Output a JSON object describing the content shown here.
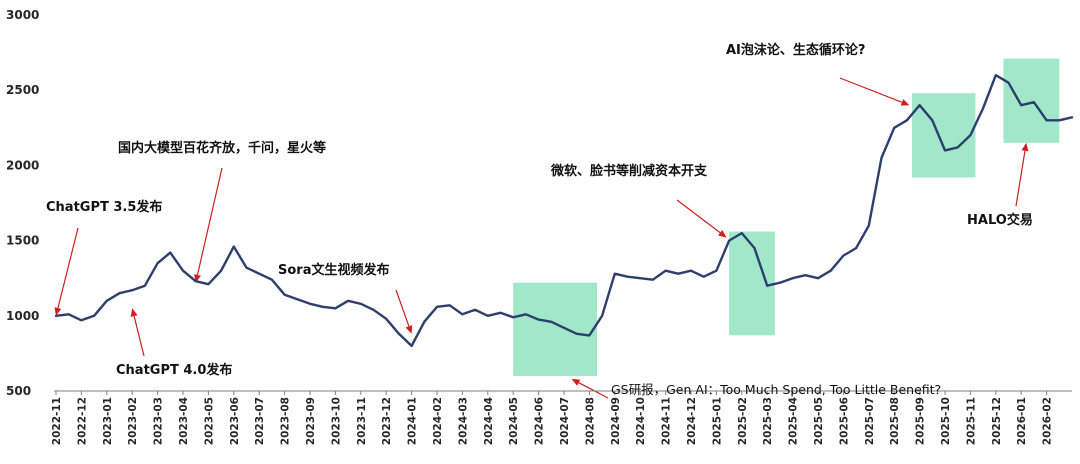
{
  "chart_data": {
    "type": "line",
    "title": "",
    "xlabel": "",
    "ylabel": "",
    "ylim": [
      500,
      3000
    ],
    "yticks": [
      500,
      1000,
      1500,
      2000,
      2500,
      3000
    ],
    "grid": false,
    "legend": "none",
    "x_start": "2022-11",
    "x_end": "2026-03",
    "xticks": [
      "2022-11",
      "2022-12",
      "2023-01",
      "2023-02",
      "2023-03",
      "2023-04",
      "2023-05",
      "2023-06",
      "2023-07",
      "2023-08",
      "2023-09",
      "2023-10",
      "2023-11",
      "2023-12",
      "2024-01",
      "2024-02",
      "2024-03",
      "2024-04",
      "2024-05",
      "2024-06",
      "2024-07",
      "2024-08",
      "2024-09",
      "2024-10",
      "2024-11",
      "2024-12",
      "2025-01",
      "2025-02",
      "2025-03",
      "2025-04",
      "2025-05",
      "2025-06",
      "2025-07",
      "2025-08",
      "2025-09",
      "2025-10",
      "2025-11",
      "2025-12",
      "2026-01",
      "2026-02"
    ],
    "series": [
      {
        "color": "#2e3f6e",
        "x": [
          "2022-11",
          "2022-11.5",
          "2022-12",
          "2022-12.5",
          "2023-01",
          "2023-01.5",
          "2023-02",
          "2023-02.5",
          "2023-03",
          "2023-03.5",
          "2023-04",
          "2023-04.5",
          "2023-05",
          "2023-05.5",
          "2023-06",
          "2023-06.5",
          "2023-07",
          "2023-07.5",
          "2023-08",
          "2023-08.5",
          "2023-09",
          "2023-09.5",
          "2023-10",
          "2023-10.5",
          "2023-11",
          "2023-11.5",
          "2023-12",
          "2023-12.5",
          "2024-01",
          "2024-01.5",
          "2024-02",
          "2024-02.5",
          "2024-03",
          "2024-03.5",
          "2024-04",
          "2024-04.5",
          "2024-05",
          "2024-05.5",
          "2024-06",
          "2024-06.5",
          "2024-07",
          "2024-07.5",
          "2024-08",
          "2024-08.5",
          "2024-09",
          "2024-09.5",
          "2024-10",
          "2024-10.5",
          "2024-11",
          "2024-11.5",
          "2024-12",
          "2024-12.5",
          "2025-01",
          "2025-01.5",
          "2025-02",
          "2025-02.5",
          "2025-03",
          "2025-03.5",
          "2025-04",
          "2025-04.5",
          "2025-05",
          "2025-05.5",
          "2025-06",
          "2025-06.5",
          "2025-07",
          "2025-07.5",
          "2025-08",
          "2025-08.5",
          "2025-09",
          "2025-09.5",
          "2025-10",
          "2025-10.5",
          "2025-11",
          "2025-11.5",
          "2025-12",
          "2025-12.5",
          "2026-01",
          "2026-01.5",
          "2026-02",
          "2026-02.5",
          "2026-03"
        ],
        "values": [
          1000,
          1010,
          970,
          1000,
          1100,
          1150,
          1170,
          1200,
          1350,
          1420,
          1300,
          1230,
          1210,
          1300,
          1460,
          1320,
          1280,
          1240,
          1140,
          1110,
          1080,
          1060,
          1050,
          1100,
          1080,
          1040,
          980,
          880,
          800,
          960,
          1060,
          1070,
          1010,
          1040,
          1000,
          1020,
          990,
          1010,
          975,
          960,
          920,
          880,
          870,
          1000,
          1280,
          1260,
          1250,
          1240,
          1300,
          1280,
          1300,
          1260,
          1300,
          1500,
          1550,
          1450,
          1200,
          1220,
          1250,
          1270,
          1250,
          1300,
          1400,
          1450,
          1600,
          2050,
          2250,
          2300,
          2400,
          2300,
          2100,
          2120,
          2200,
          2380,
          2600,
          2550,
          2400,
          2420,
          2300,
          2300,
          2320
        ]
      }
    ],
    "highlight_periods": [
      {
        "from": "2024-05",
        "to": "2024-08.3",
        "low": 600,
        "high": 1220
      },
      {
        "from": "2025-01.5",
        "to": "2025-03.3",
        "low": 870,
        "high": 1560
      },
      {
        "from": "2025-08.7",
        "to": "2025-11.2",
        "low": 1920,
        "high": 2480
      },
      {
        "from": "2025-12.3",
        "to": "2026-02.5",
        "low": 2150,
        "high": 2710
      }
    ],
    "annotations": [
      {
        "id": "chatgpt35",
        "text": "ChatGPT 3.5发布",
        "style": "bold",
        "target": {
          "x": "2022-11",
          "y": 1000
        }
      },
      {
        "id": "chatgpt40",
        "text": "ChatGPT 4.0发布",
        "style": "bold",
        "target": {
          "x": "2023-02",
          "y": 1050
        }
      },
      {
        "id": "domestic",
        "text": "国内大模型百花齐放，千问，星火等",
        "style": "bold",
        "target": {
          "x": "2023-04.5",
          "y": 1220
        }
      },
      {
        "id": "sora",
        "text": "Sora文生视频发布",
        "style": "bold",
        "target": {
          "x": "2024-01",
          "y": 880
        }
      },
      {
        "id": "gs",
        "text": "GS研报，Gen AI：Too Much Spend, Too Little Benefit?",
        "style": "plain",
        "target": {
          "x": "2024-07.3",
          "y": 580
        }
      },
      {
        "id": "capex",
        "text": "微软、脸书等削减资本开支",
        "style": "bold",
        "target": {
          "x": "2025-01.4",
          "y": 1520
        }
      },
      {
        "id": "bubble",
        "text": "AI泡沫论、生态循环论?",
        "style": "bold",
        "target": {
          "x": "2025-08.6",
          "y": 2400
        }
      },
      {
        "id": "halo",
        "text": "HALO交易",
        "style": "bold",
        "target": {
          "x": "2026-01.2",
          "y": 2150
        }
      }
    ]
  }
}
